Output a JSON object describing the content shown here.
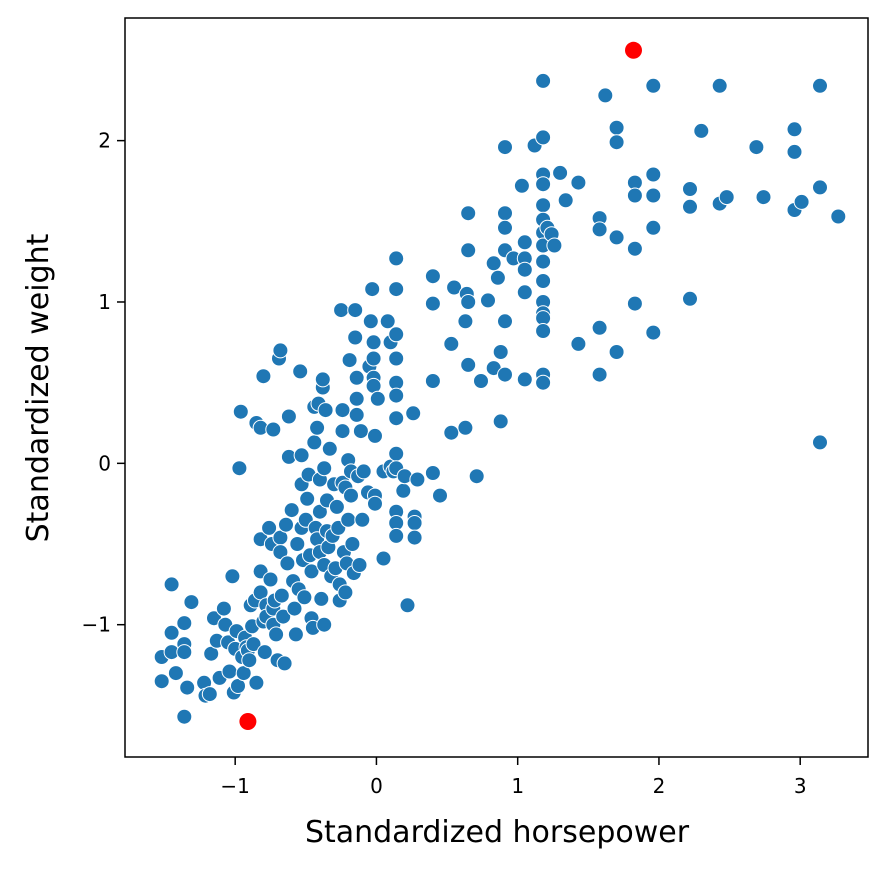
{
  "chart_data": {
    "type": "scatter",
    "title": "",
    "xlabel": "Standardized horsepower",
    "ylabel": "Standardized weight",
    "xlim": [
      -1.78,
      3.48
    ],
    "ylim": [
      -1.82,
      2.76
    ],
    "xticks": [
      -1,
      0,
      1,
      2,
      3
    ],
    "yticks": [
      -1,
      0,
      1,
      2
    ],
    "xtick_labels": [
      "−1",
      "0",
      "1",
      "2",
      "3"
    ],
    "ytick_labels": [
      "−1",
      "0",
      "1",
      "2"
    ],
    "grid": false,
    "colors": {
      "points": "#1f77b4",
      "highlight": "#ff0000",
      "point_edge": "#ffffff"
    },
    "series": [
      {
        "points": [
          [
            -1.52,
            -1.2
          ],
          [
            -1.52,
            -1.35
          ],
          [
            -1.45,
            -0.75
          ],
          [
            -1.45,
            -1.05
          ],
          [
            -1.45,
            -1.17
          ],
          [
            -1.42,
            -1.3
          ],
          [
            -1.36,
            -0.99
          ],
          [
            -1.36,
            -1.12
          ],
          [
            -1.36,
            -1.17
          ],
          [
            -1.34,
            -1.39
          ],
          [
            -1.36,
            -1.57
          ],
          [
            -1.31,
            -0.86
          ],
          [
            -1.22,
            -1.36
          ],
          [
            -1.21,
            -1.44
          ],
          [
            -1.18,
            -1.43
          ],
          [
            -1.17,
            -1.18
          ],
          [
            -1.15,
            -0.96
          ],
          [
            -1.13,
            -1.1
          ],
          [
            -1.11,
            -1.33
          ],
          [
            -1.08,
            -0.9
          ],
          [
            -1.07,
            -1.0
          ],
          [
            -1.05,
            -1.11
          ],
          [
            -1.04,
            -1.29
          ],
          [
            -1.02,
            -0.7
          ],
          [
            -1.01,
            -1.42
          ],
          [
            -1.0,
            -1.15
          ],
          [
            -0.99,
            -1.04
          ],
          [
            -0.98,
            -1.38
          ],
          [
            -0.97,
            -0.03
          ],
          [
            -0.96,
            0.32
          ],
          [
            -0.95,
            -1.2
          ],
          [
            -0.94,
            -1.3
          ],
          [
            -0.93,
            -1.08
          ],
          [
            -0.92,
            -1.14
          ],
          [
            -0.91,
            -1.16
          ],
          [
            -0.9,
            -1.22
          ],
          [
            -0.89,
            -0.88
          ],
          [
            -0.88,
            -1.01
          ],
          [
            -0.87,
            -1.12
          ],
          [
            -0.86,
            -0.85
          ],
          [
            -0.85,
            -1.36
          ],
          [
            -0.85,
            0.25
          ],
          [
            -0.82,
            -0.47
          ],
          [
            -0.82,
            -0.67
          ],
          [
            -0.82,
            -0.8
          ],
          [
            -0.82,
            0.22
          ],
          [
            -0.8,
            -0.98
          ],
          [
            -0.8,
            0.54
          ],
          [
            -0.79,
            -1.17
          ],
          [
            -0.78,
            -0.88
          ],
          [
            -0.78,
            -0.95
          ],
          [
            -0.76,
            -0.4
          ],
          [
            -0.75,
            -0.72
          ],
          [
            -0.74,
            -0.5
          ],
          [
            -0.73,
            -0.9
          ],
          [
            -0.73,
            -1.0
          ],
          [
            -0.73,
            0.21
          ],
          [
            -0.72,
            -0.85
          ],
          [
            -0.71,
            -1.06
          ],
          [
            -0.7,
            -1.22
          ],
          [
            -0.69,
            0.65
          ],
          [
            -0.68,
            -0.46
          ],
          [
            -0.68,
            -0.55
          ],
          [
            -0.68,
            0.7
          ],
          [
            -0.67,
            -0.82
          ],
          [
            -0.66,
            -0.95
          ],
          [
            -0.65,
            -1.24
          ],
          [
            -0.64,
            -0.38
          ],
          [
            -0.63,
            -0.62
          ],
          [
            -0.62,
            0.04
          ],
          [
            -0.62,
            0.29
          ],
          [
            -0.6,
            -0.29
          ],
          [
            -0.59,
            -0.73
          ],
          [
            -0.58,
            -0.9
          ],
          [
            -0.57,
            -1.06
          ],
          [
            -0.56,
            -0.5
          ],
          [
            -0.55,
            -0.78
          ],
          [
            -0.54,
            0.57
          ],
          [
            -0.53,
            -0.4
          ],
          [
            -0.53,
            -0.13
          ],
          [
            -0.53,
            0.05
          ],
          [
            -0.52,
            -0.6
          ],
          [
            -0.51,
            -0.83
          ],
          [
            -0.5,
            -0.35
          ],
          [
            -0.49,
            -0.22
          ],
          [
            -0.48,
            -0.07
          ],
          [
            -0.47,
            -0.57
          ],
          [
            -0.46,
            -0.67
          ],
          [
            -0.46,
            -0.96
          ],
          [
            -0.45,
            -1.02
          ],
          [
            -0.44,
            0.13
          ],
          [
            -0.44,
            0.35
          ],
          [
            -0.43,
            -0.4
          ],
          [
            -0.42,
            -0.47
          ],
          [
            -0.42,
            0.22
          ],
          [
            -0.41,
            0.37
          ],
          [
            -0.4,
            -0.1
          ],
          [
            -0.4,
            -0.3
          ],
          [
            -0.4,
            -0.55
          ],
          [
            -0.39,
            -0.84
          ],
          [
            -0.38,
            0.47
          ],
          [
            -0.38,
            0.52
          ],
          [
            -0.37,
            -0.03
          ],
          [
            -0.37,
            -0.63
          ],
          [
            -0.37,
            -1.0
          ],
          [
            -0.36,
            0.33
          ],
          [
            -0.35,
            -0.23
          ],
          [
            -0.35,
            -0.42
          ],
          [
            -0.34,
            -0.52
          ],
          [
            -0.33,
            0.09
          ],
          [
            -0.32,
            -0.7
          ],
          [
            -0.31,
            -0.45
          ],
          [
            -0.3,
            -0.13
          ],
          [
            -0.29,
            -0.65
          ],
          [
            -0.28,
            -0.27
          ],
          [
            -0.27,
            -0.4
          ],
          [
            -0.26,
            -0.75
          ],
          [
            -0.26,
            -0.85
          ],
          [
            -0.25,
            0.95
          ],
          [
            -0.24,
            0.33
          ],
          [
            -0.24,
            0.2
          ],
          [
            -0.24,
            -0.12
          ],
          [
            -0.23,
            -0.55
          ],
          [
            -0.22,
            -0.15
          ],
          [
            -0.22,
            -0.8
          ],
          [
            -0.21,
            -0.62
          ],
          [
            -0.2,
            0.02
          ],
          [
            -0.2,
            -0.35
          ],
          [
            -0.19,
            0.64
          ],
          [
            -0.18,
            -0.2
          ],
          [
            -0.18,
            -0.05
          ],
          [
            -0.17,
            -0.5
          ],
          [
            -0.16,
            -0.68
          ],
          [
            -0.15,
            0.95
          ],
          [
            -0.15,
            0.78
          ],
          [
            -0.14,
            0.53
          ],
          [
            -0.14,
            0.3
          ],
          [
            -0.14,
            0.4
          ],
          [
            -0.13,
            -0.08
          ],
          [
            -0.12,
            -0.63
          ],
          [
            -0.11,
            0.2
          ],
          [
            -0.1,
            -0.35
          ],
          [
            -0.09,
            -0.05
          ],
          [
            -0.06,
            -0.18
          ],
          [
            -0.05,
            0.6
          ],
          [
            -0.04,
            0.88
          ],
          [
            -0.03,
            1.08
          ],
          [
            -0.02,
            0.75
          ],
          [
            -0.02,
            0.65
          ],
          [
            -0.02,
            0.53
          ],
          [
            -0.02,
            0.48
          ],
          [
            -0.01,
            0.17
          ],
          [
            -0.01,
            -0.2
          ],
          [
            -0.01,
            -0.25
          ],
          [
            0.01,
            0.4
          ],
          [
            0.05,
            -0.05
          ],
          [
            0.05,
            -0.59
          ],
          [
            0.08,
            0.88
          ],
          [
            0.1,
            0.75
          ],
          [
            0.1,
            -0.02
          ],
          [
            0.12,
            -0.05
          ],
          [
            0.14,
            1.27
          ],
          [
            0.14,
            1.08
          ],
          [
            0.14,
            0.8
          ],
          [
            0.14,
            0.65
          ],
          [
            0.14,
            0.5
          ],
          [
            0.14,
            0.42
          ],
          [
            0.14,
            0.28
          ],
          [
            0.14,
            0.06
          ],
          [
            0.14,
            -0.03
          ],
          [
            0.14,
            -0.3
          ],
          [
            0.14,
            -0.37
          ],
          [
            0.14,
            -0.45
          ],
          [
            0.19,
            -0.17
          ],
          [
            0.2,
            -0.08
          ],
          [
            0.22,
            -0.88
          ],
          [
            0.26,
            0.31
          ],
          [
            0.27,
            -0.33
          ],
          [
            0.27,
            -0.37
          ],
          [
            0.27,
            -0.46
          ],
          [
            0.29,
            -0.1
          ],
          [
            0.4,
            1.16
          ],
          [
            0.4,
            0.51
          ],
          [
            0.4,
            0.99
          ],
          [
            0.4,
            -0.06
          ],
          [
            0.45,
            -0.2
          ],
          [
            0.53,
            0.74
          ],
          [
            0.53,
            0.19
          ],
          [
            0.55,
            1.09
          ],
          [
            0.63,
            0.22
          ],
          [
            0.63,
            0.88
          ],
          [
            0.64,
            1.05
          ],
          [
            0.65,
            1.0
          ],
          [
            0.65,
            1.32
          ],
          [
            0.65,
            1.55
          ],
          [
            0.65,
            0.61
          ],
          [
            0.71,
            -0.08
          ],
          [
            0.74,
            0.51
          ],
          [
            0.79,
            1.01
          ],
          [
            0.83,
            1.24
          ],
          [
            0.83,
            0.59
          ],
          [
            0.86,
            1.15
          ],
          [
            0.88,
            0.26
          ],
          [
            0.88,
            0.69
          ],
          [
            0.91,
            1.96
          ],
          [
            0.91,
            1.55
          ],
          [
            0.91,
            1.46
          ],
          [
            0.91,
            1.32
          ],
          [
            0.91,
            0.88
          ],
          [
            0.91,
            0.55
          ],
          [
            0.97,
            1.27
          ],
          [
            1.03,
            1.72
          ],
          [
            1.05,
            1.37
          ],
          [
            1.05,
            1.27
          ],
          [
            1.05,
            1.2
          ],
          [
            1.05,
            1.06
          ],
          [
            1.05,
            0.52
          ],
          [
            1.12,
            1.97
          ],
          [
            1.18,
            2.02
          ],
          [
            1.18,
            2.37
          ],
          [
            1.18,
            1.79
          ],
          [
            1.18,
            1.73
          ],
          [
            1.18,
            1.6
          ],
          [
            1.18,
            1.51
          ],
          [
            1.18,
            1.43
          ],
          [
            1.18,
            1.35
          ],
          [
            1.18,
            1.25
          ],
          [
            1.18,
            1.13
          ],
          [
            1.18,
            1.0
          ],
          [
            1.18,
            0.93
          ],
          [
            1.18,
            0.9
          ],
          [
            1.18,
            0.82
          ],
          [
            1.18,
            0.55
          ],
          [
            1.18,
            0.5
          ],
          [
            1.21,
            1.46
          ],
          [
            1.24,
            1.42
          ],
          [
            1.26,
            1.35
          ],
          [
            1.3,
            1.8
          ],
          [
            1.34,
            1.63
          ],
          [
            1.43,
            1.74
          ],
          [
            1.43,
            0.74
          ],
          [
            1.58,
            1.52
          ],
          [
            1.58,
            1.45
          ],
          [
            1.58,
            0.84
          ],
          [
            1.58,
            0.55
          ],
          [
            1.62,
            2.28
          ],
          [
            1.7,
            2.08
          ],
          [
            1.7,
            1.99
          ],
          [
            1.7,
            1.4
          ],
          [
            1.7,
            0.69
          ],
          [
            1.83,
            1.74
          ],
          [
            1.83,
            1.66
          ],
          [
            1.83,
            1.33
          ],
          [
            1.83,
            0.99
          ],
          [
            1.96,
            2.34
          ],
          [
            1.96,
            1.79
          ],
          [
            1.96,
            1.66
          ],
          [
            1.96,
            1.46
          ],
          [
            1.96,
            0.81
          ],
          [
            2.22,
            1.7
          ],
          [
            2.22,
            1.59
          ],
          [
            2.22,
            1.02
          ],
          [
            2.3,
            2.06
          ],
          [
            2.43,
            2.34
          ],
          [
            2.43,
            1.61
          ],
          [
            2.48,
            1.65
          ],
          [
            2.69,
            1.96
          ],
          [
            2.74,
            1.65
          ],
          [
            2.96,
            2.07
          ],
          [
            2.96,
            1.93
          ],
          [
            2.96,
            1.57
          ],
          [
            3.01,
            1.62
          ],
          [
            3.14,
            2.34
          ],
          [
            3.14,
            1.71
          ],
          [
            3.14,
            0.13
          ],
          [
            3.27,
            1.53
          ]
        ]
      },
      {
        "highlighted": true,
        "points": [
          [
            1.82,
            2.56
          ],
          [
            -0.91,
            -1.6
          ]
        ]
      }
    ]
  }
}
